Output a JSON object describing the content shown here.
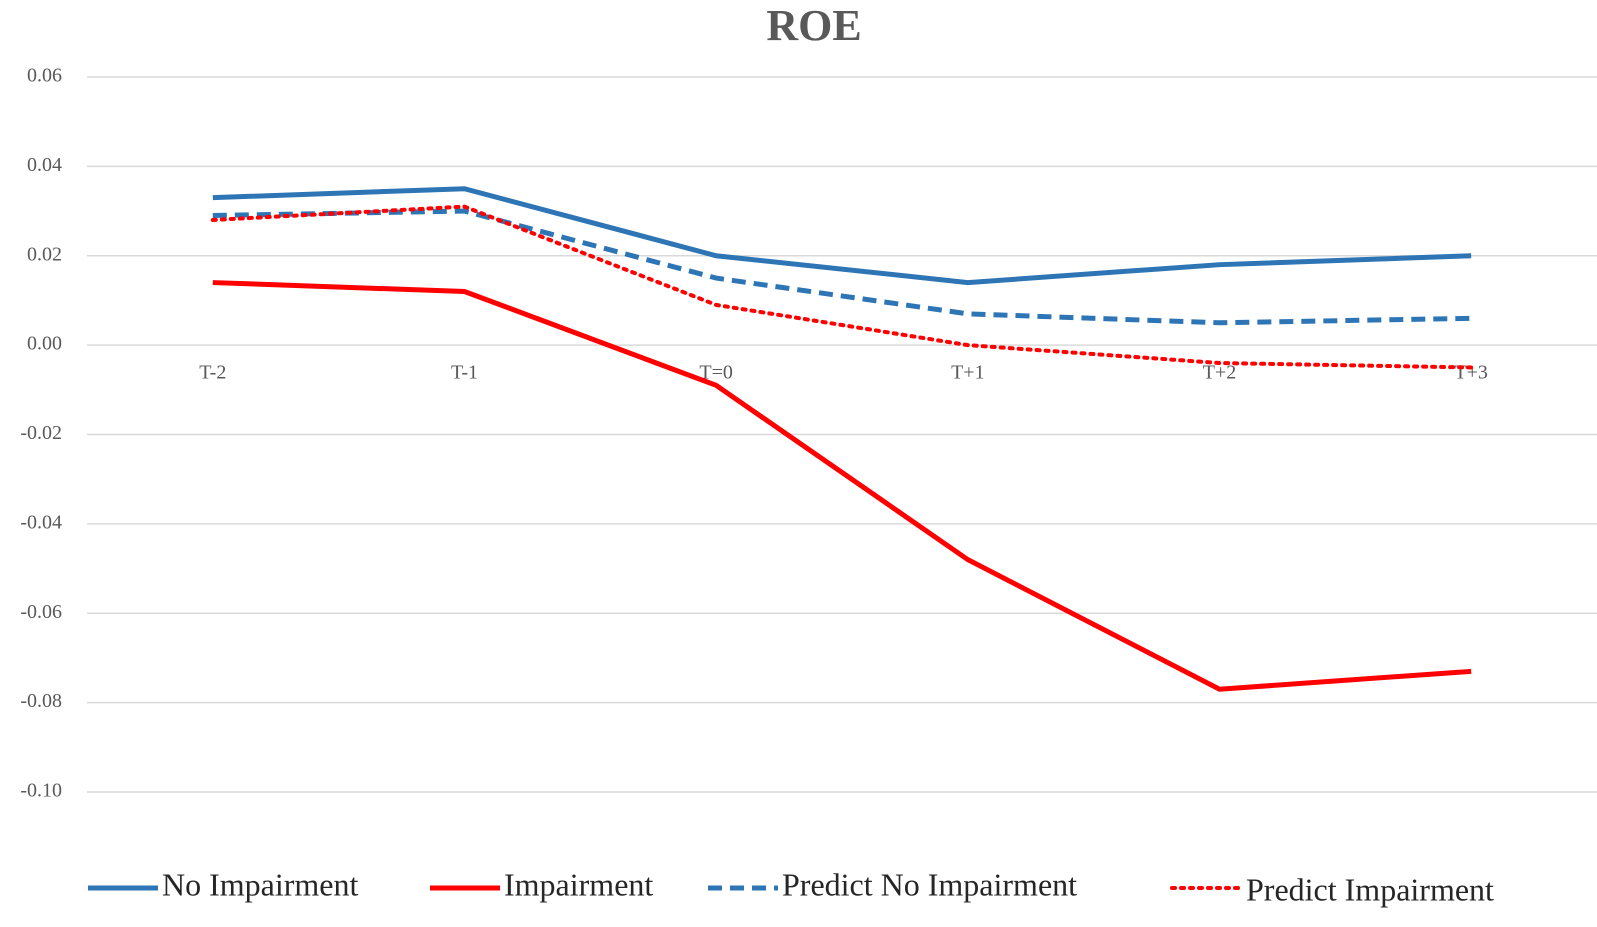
{
  "chart_data": {
    "type": "line",
    "title": "ROE",
    "categories": [
      "T-2",
      "T-1",
      "T=0",
      "T+1",
      "T+2",
      "T+3"
    ],
    "series": [
      {
        "name": "No Impairment",
        "color": "#2e75b6",
        "dash": "solid",
        "values": [
          0.033,
          0.035,
          0.02,
          0.014,
          0.018,
          0.02
        ]
      },
      {
        "name": "Impairment",
        "color": "#ff0000",
        "dash": "solid",
        "values": [
          0.014,
          0.012,
          -0.009,
          -0.048,
          -0.077,
          -0.073
        ]
      },
      {
        "name": "Predict No Impairment",
        "color": "#2e75b6",
        "dash": "dashed",
        "values": [
          0.029,
          0.03,
          0.015,
          0.007,
          0.005,
          0.006
        ]
      },
      {
        "name": "Predict Impairment",
        "color": "#ff0000",
        "dash": "dotted",
        "values": [
          0.028,
          0.031,
          0.009,
          0.0,
          -0.004,
          -0.005
        ]
      }
    ],
    "ylim": [
      -0.1,
      0.06
    ],
    "yticks": [
      0.06,
      0.04,
      0.02,
      {
        "value": 0,
        "label": "0.00"
      },
      -0.02,
      -0.04,
      -0.06,
      -0.08,
      {
        "value": -0.1,
        "label": "-0.10"
      }
    ],
    "grid": true,
    "legend": "bottom"
  }
}
